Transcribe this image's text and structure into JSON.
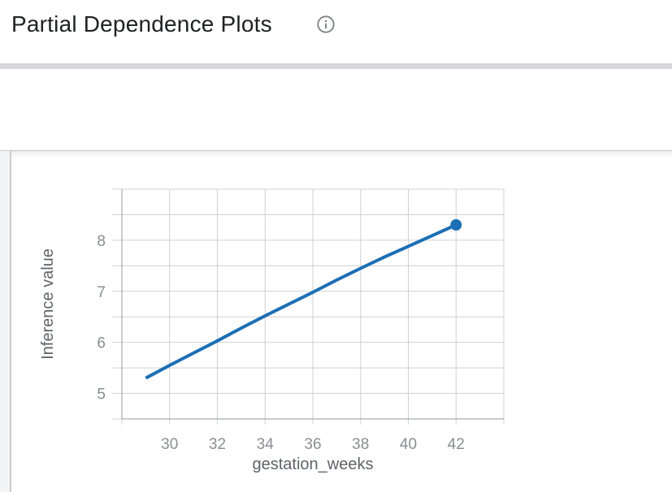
{
  "header": {
    "title": "Partial Dependence Plots"
  },
  "section": {
    "label": "gestation_weeks",
    "state": "expanded"
  },
  "icons": {
    "info": "info-icon",
    "chevron": "chevron-down-icon"
  },
  "colors": {
    "line": "#1c6fb4",
    "grid": "#d0d1d3",
    "axis": "#a9abae",
    "tick_label": "#8a8e92",
    "axis_title": "#5f6368",
    "text_primary": "#202124",
    "divider_bar": "#d6d7da",
    "icon_gray": "#7d8084"
  },
  "chart_data": {
    "type": "line",
    "title": "",
    "xlabel": "gestation_weeks",
    "ylabel": "Inference value",
    "x": [
      29,
      30,
      31,
      32,
      33,
      34,
      35,
      36,
      37,
      38,
      39,
      40,
      41,
      42
    ],
    "y": [
      5.3,
      5.55,
      5.79,
      6.03,
      6.28,
      6.52,
      6.75,
      6.98,
      7.22,
      7.45,
      7.67,
      7.88,
      8.09,
      8.3
    ],
    "xlim": [
      28,
      44
    ],
    "ylim": [
      4.5,
      9.0
    ],
    "x_grid_step": 2,
    "y_grid_step": 0.5,
    "xticks_labeled": [
      30,
      32,
      34,
      36,
      38,
      40,
      42
    ],
    "yticks_labeled": [
      5,
      6,
      7,
      8
    ],
    "grid": true,
    "legend": "none",
    "line_color": "#1c6fb4",
    "line_width": 4,
    "endpoint_marker": {
      "x": 42,
      "y": 8.3,
      "radius": 7
    }
  }
}
